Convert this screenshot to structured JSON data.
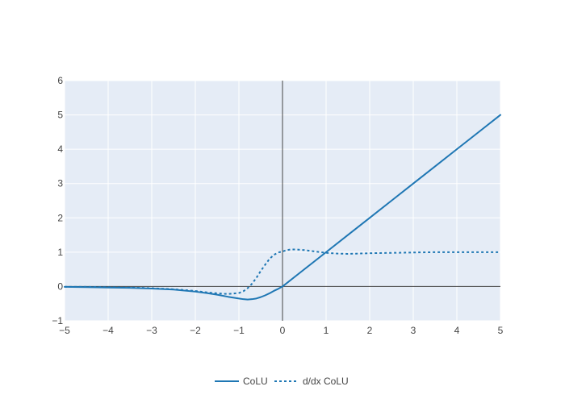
{
  "chart_data": {
    "type": "line",
    "title": "",
    "xlabel": "",
    "ylabel": "",
    "xlim": [
      -5,
      5
    ],
    "ylim": [
      -1,
      6
    ],
    "x_ticks": [
      -5,
      -4,
      -3,
      -2,
      -1,
      0,
      1,
      2,
      3,
      4,
      5
    ],
    "y_ticks": [
      -1,
      0,
      1,
      2,
      3,
      4,
      5,
      6
    ],
    "x_tick_labels": [
      "−5",
      "−4",
      "−3",
      "−2",
      "−1",
      "0",
      "1",
      "2",
      "3",
      "4",
      "5"
    ],
    "y_tick_labels": [
      "−1",
      "0",
      "1",
      "2",
      "3",
      "4",
      "5",
      "6"
    ],
    "grid": true,
    "zero_lines": true,
    "legend_position": "bottom-center",
    "colors": {
      "plot_background": "#e5ecf6",
      "grid": "#ffffff",
      "zero_line": "#444444",
      "series": "#1f77b4"
    },
    "series": [
      {
        "name": "CoLU",
        "style": "solid",
        "x": [
          -5,
          -4.5,
          -4,
          -3.5,
          -3,
          -2.5,
          -2,
          -1.75,
          -1.5,
          -1.25,
          -1,
          -0.9,
          -0.8,
          -0.7,
          -0.6,
          -0.5,
          -0.4,
          -0.3,
          -0.2,
          -0.1,
          0,
          0.5,
          1,
          1.5,
          2,
          2.5,
          3,
          3.5,
          4,
          4.5,
          5
        ],
        "y": [
          -0.01,
          -0.02,
          -0.03,
          -0.04,
          -0.06,
          -0.09,
          -0.15,
          -0.19,
          -0.24,
          -0.3,
          -0.35,
          -0.37,
          -0.38,
          -0.37,
          -0.35,
          -0.31,
          -0.26,
          -0.2,
          -0.13,
          -0.07,
          0,
          0.5,
          1,
          1.5,
          2,
          2.5,
          3,
          3.5,
          4,
          4.5,
          5
        ]
      },
      {
        "name": "d/dx CoLU",
        "style": "dotted",
        "x": [
          -5,
          -4.5,
          -4,
          -3.5,
          -3,
          -2.5,
          -2,
          -1.75,
          -1.5,
          -1.25,
          -1,
          -0.9,
          -0.8,
          -0.7,
          -0.6,
          -0.5,
          -0.4,
          -0.3,
          -0.2,
          -0.1,
          0,
          0.1,
          0.2,
          0.3,
          0.5,
          0.75,
          1,
          1.25,
          1.5,
          1.75,
          2,
          2.5,
          3,
          3.5,
          4,
          4.5,
          5
        ],
        "y": [
          -0.01,
          -0.01,
          -0.02,
          -0.03,
          -0.05,
          -0.08,
          -0.13,
          -0.17,
          -0.2,
          -0.22,
          -0.19,
          -0.14,
          -0.05,
          0.08,
          0.25,
          0.45,
          0.63,
          0.8,
          0.92,
          0.99,
          1.02,
          1.06,
          1.08,
          1.08,
          1.06,
          1.02,
          0.98,
          0.96,
          0.95,
          0.96,
          0.97,
          0.98,
          0.99,
          1.0,
          1.0,
          1.0,
          1.0
        ]
      }
    ]
  }
}
